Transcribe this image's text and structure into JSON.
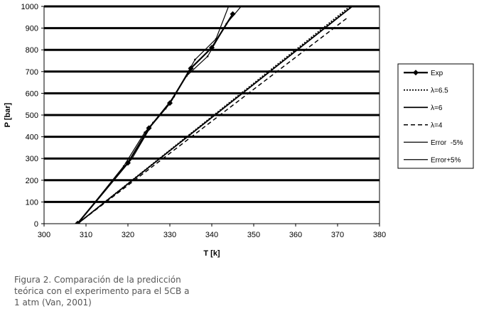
{
  "chart_data": {
    "type": "line",
    "title": "",
    "xlabel": "T [k]",
    "ylabel": "P [bar]",
    "xlim": [
      300,
      380
    ],
    "ylim": [
      0,
      1000
    ],
    "x_ticks": [
      "300",
      "310",
      "320",
      "330",
      "340",
      "350",
      "360",
      "370",
      "380"
    ],
    "y_ticks": [
      "0",
      "100",
      "200",
      "300",
      "400",
      "500",
      "600",
      "700",
      "800",
      "900",
      "1000"
    ],
    "grid": "horizontal",
    "legend_position": "right",
    "series": [
      {
        "name": "Exp",
        "style": "solid-diamond",
        "color": "#000000",
        "points": [
          [
            308,
            1
          ],
          [
            320,
            280
          ],
          [
            325,
            440
          ],
          [
            330,
            555
          ],
          [
            335,
            715
          ],
          [
            340,
            810
          ],
          [
            345,
            965
          ]
        ]
      },
      {
        "name": "λ=6.5",
        "style": "dotted",
        "color": "#000000",
        "points": [
          [
            308,
            0
          ],
          [
            373,
            1000
          ]
        ]
      },
      {
        "name": "λ=6",
        "style": "solid",
        "color": "#000000",
        "points": [
          [
            308,
            0
          ],
          [
            373.5,
            1000
          ]
        ]
      },
      {
        "name": "λ=4",
        "style": "dashed",
        "color": "#000000",
        "points": [
          [
            308,
            0
          ],
          [
            372.5,
            950
          ]
        ]
      },
      {
        "name": "Error  -5%",
        "style": "solid-thin",
        "color": "#000000",
        "points": [
          [
            308,
            0
          ],
          [
            319,
            265
          ],
          [
            324,
            420
          ],
          [
            329,
            530
          ],
          [
            334,
            680
          ],
          [
            339,
            770
          ],
          [
            343.5,
            920
          ],
          [
            347,
            1000
          ]
        ]
      },
      {
        "name": "Error+5%",
        "style": "solid-thin",
        "color": "#000000",
        "points": [
          [
            308,
            0
          ],
          [
            321,
            300
          ],
          [
            326,
            465
          ],
          [
            331,
            585
          ],
          [
            336,
            755
          ],
          [
            341,
            850
          ],
          [
            344,
            1000
          ]
        ]
      }
    ]
  },
  "caption": {
    "line1": "Figura 2. Comparación de la predicción",
    "line2": "teórica con el experimento para el 5CB a",
    "line3": "1 atm (Van, 2001)"
  }
}
